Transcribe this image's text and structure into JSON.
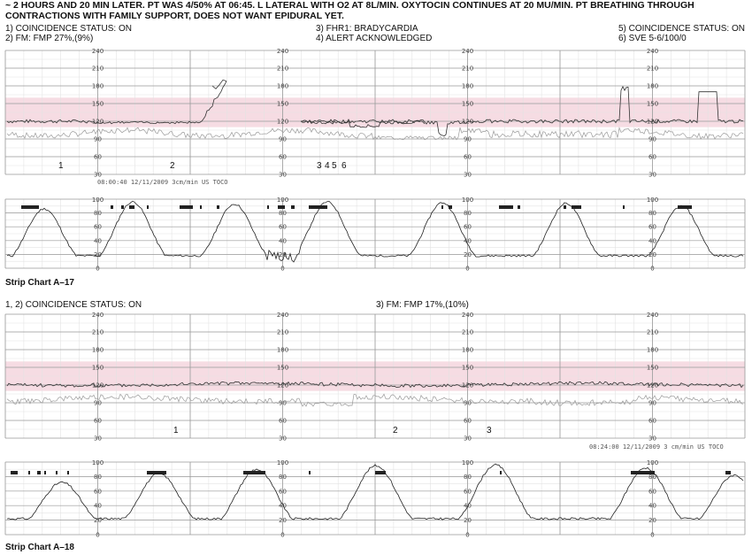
{
  "header": {
    "text": "~ 2 HOURS AND 20 MIN LATER. PT WAS 4/50% AT 06:45. L LATERAL WITH O2 AT 8L/MIN. OXYTOCIN CONTINUES AT 20 MU/MIN. PT BREATHING THROUGH CONTRACTIONS WITH FAMILY SUPPORT, DOES NOT WANT EPIDURAL YET."
  },
  "strip_a17": {
    "notes": {
      "n1": "1) COINCIDENCE STATUS: ON",
      "n2": "2) FM: FMP 27%,(9%)",
      "n3": "3) FHR1: BRADYCARDIA",
      "n4": "4) ALERT ACKNOWLEDGED",
      "n5": "5) COINCIDENCE STATUS: ON",
      "n6": "6) SVE 5-6/100/0"
    },
    "fhr_ticks": [
      "240",
      "210",
      "180",
      "150",
      "120",
      "90",
      "60",
      "30"
    ],
    "uc_ticks": [
      "100",
      "80",
      "60",
      "40",
      "20",
      "0"
    ],
    "markers": [
      "1",
      "2",
      "3",
      "4",
      "5",
      "6"
    ],
    "stamp": "08:00:40 12/11/2009 3cm/min  US TOCO",
    "label": "Strip Chart A–17"
  },
  "strip_a18": {
    "notes": {
      "n1": "1, 2) COINCIDENCE STATUS: ON",
      "n3": "3) FM: FMP 17%,(10%)"
    },
    "fhr_ticks": [
      "240",
      "210",
      "180",
      "150",
      "120",
      "90",
      "60",
      "30"
    ],
    "uc_ticks": [
      "100",
      "80",
      "60",
      "40",
      "20",
      "0"
    ],
    "markers": [
      "1",
      "2",
      "3"
    ],
    "stamp": "08:24:00 12/11/2009 3 cm/min  US TOCO",
    "label": "Strip Chart A–18"
  },
  "colors": {
    "grid_minor": "#e3e3e3",
    "grid_major": "#9a9a9a",
    "band": "#f6dce3",
    "fhr_trace": "#333333",
    "mhr_trace": "#9a9a9a",
    "uc_trace": "#222222",
    "fm_mark": "#222222"
  }
}
